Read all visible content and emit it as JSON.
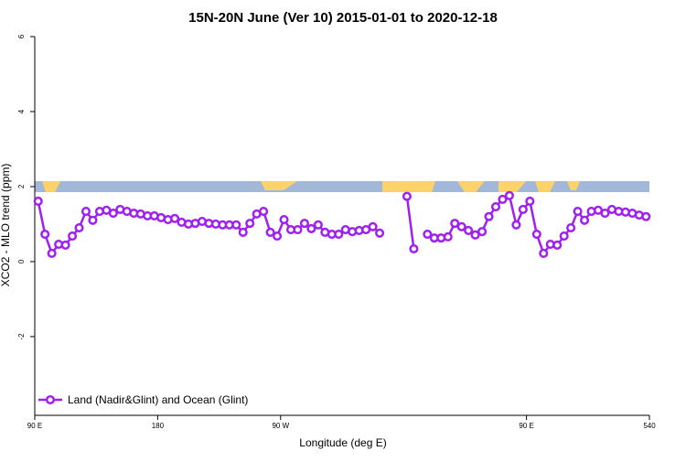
{
  "chart_data": {
    "type": "line",
    "title": "15N-20N June (Ver 10)   2015-01-01 to 2020-12-18",
    "x_label": "Longitude (deg E)",
    "y_label": "XCO2 - MLO trend (ppm)",
    "x": [
      92.5,
      97.5,
      102.5,
      107.5,
      112.5,
      117.5,
      122.5,
      127.5,
      132.5,
      137.5,
      142.5,
      147.5,
      152.5,
      157.5,
      162.5,
      167.5,
      172.5,
      177.5,
      182.5,
      187.5,
      192.5,
      197.5,
      202.5,
      207.5,
      212.5,
      217.5,
      222.5,
      227.5,
      232.5,
      237.5,
      242.5,
      247.5,
      252.5,
      257.5,
      262.5,
      267.5,
      272.5,
      277.5,
      282.5,
      287.5,
      292.5,
      297.5,
      302.5,
      307.5,
      312.5,
      317.5,
      322.5,
      327.5,
      332.5,
      337.5,
      342.5,
      347.5,
      352.5,
      357.5,
      362.5,
      367.5,
      372.5,
      377.5,
      382.5,
      387.5,
      392.5,
      397.5,
      402.5,
      407.5,
      412.5,
      417.5,
      422.5,
      427.5,
      432.5,
      437.5,
      442.5,
      447.5,
      452.5,
      457.5,
      462.5,
      467.5,
      472.5,
      477.5,
      482.5,
      487.5,
      492.5,
      497.5,
      502.5,
      507.5,
      512.5,
      517.5,
      522.5,
      527.5,
      532.5,
      537.5
    ],
    "series": [
      {
        "name": "Land (Nadir&Glint) and Ocean (Glint)",
        "color": "#a020f0",
        "values": [
          1.61,
          0.73,
          0.22,
          0.46,
          0.44,
          0.68,
          0.9,
          1.34,
          1.1,
          1.34,
          1.37,
          1.29,
          1.39,
          1.34,
          1.29,
          1.27,
          1.22,
          1.22,
          1.17,
          1.12,
          1.15,
          1.05,
          1.0,
          1.02,
          1.07,
          1.02,
          1.0,
          0.98,
          0.98,
          0.98,
          0.78,
          1.02,
          1.27,
          1.34,
          0.78,
          0.68,
          1.12,
          0.85,
          0.85,
          1.02,
          0.88,
          0.98,
          0.78,
          0.73,
          0.73,
          0.85,
          0.8,
          0.83,
          0.85,
          0.93,
          0.76,
          null,
          null,
          null,
          1.74,
          0.34,
          null,
          0.73,
          0.63,
          0.63,
          0.66,
          1.02,
          0.93,
          0.83,
          0.71,
          0.8,
          1.2,
          1.46,
          1.66,
          1.76,
          0.98,
          1.39,
          1.61,
          0.73,
          0.22,
          0.46,
          0.44,
          0.68,
          0.9,
          1.34,
          1.1,
          1.34,
          1.37,
          1.29,
          1.39,
          1.34,
          1.32,
          1.29,
          1.24,
          1.2
        ]
      }
    ],
    "xlim": [
      90,
      540
    ],
    "xticks": [
      {
        "value": 90,
        "label": "90 E"
      },
      180,
      {
        "value": 270,
        "label": "90 W"
      },
      {
        "value": 450,
        "label": "90 E"
      },
      540
    ],
    "ylim": [
      -4.1,
      6
    ],
    "yticks": [
      6,
      4,
      2,
      0,
      -2
    ],
    "legend": "bottom-left"
  }
}
